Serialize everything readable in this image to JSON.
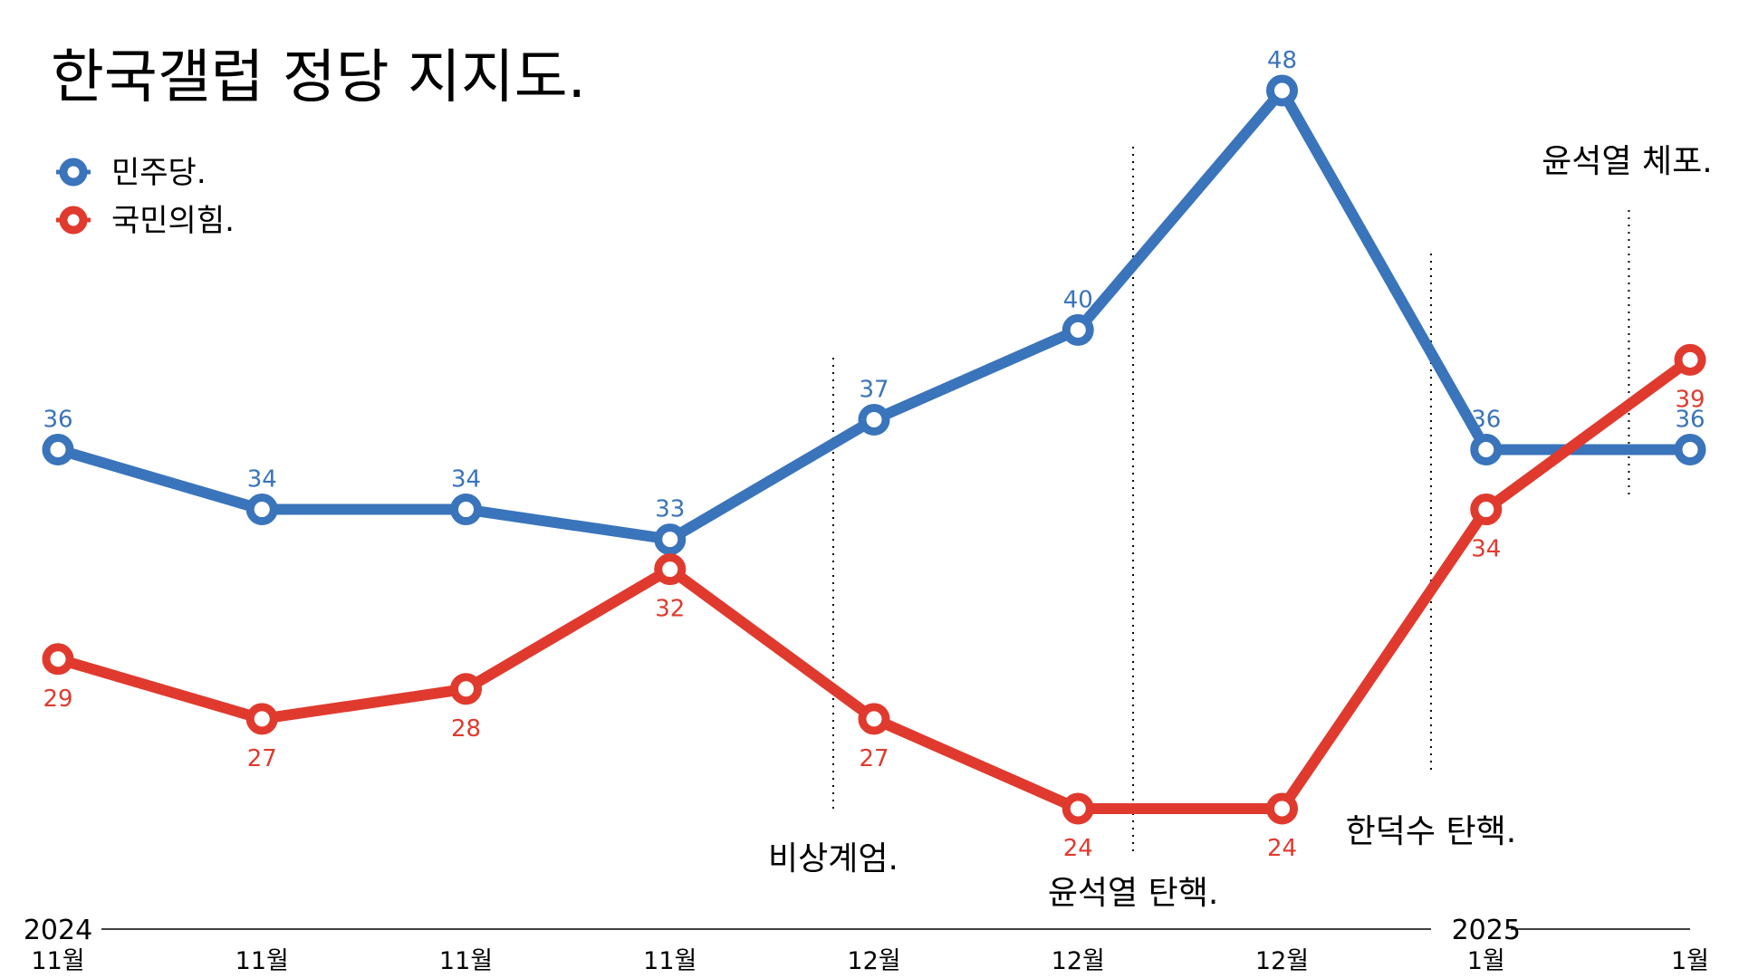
{
  "title": "한국갤럽 정당 지지도.",
  "colors": {
    "blue": "#3a74bb",
    "red": "#e03a2e"
  },
  "chart_data": {
    "type": "line",
    "title": "한국갤럽 정당 지지도.",
    "categories": [
      "11월",
      "11월",
      "11월",
      "11월",
      "12월",
      "12월",
      "12월",
      "1월",
      "1월"
    ],
    "year_labels": [
      {
        "label": "2024",
        "index": 0
      },
      {
        "label": "2025",
        "index": 7
      }
    ],
    "series": [
      {
        "name": "민주당.",
        "color": "#3a74bb",
        "values": [
          36,
          34,
          34,
          33,
          37,
          40,
          48,
          36,
          36
        ]
      },
      {
        "name": "국민의힘.",
        "color": "#e03a2e",
        "values": [
          29,
          27,
          28,
          32,
          27,
          24,
          24,
          34,
          39
        ]
      }
    ],
    "events": [
      {
        "label": "비상계엄.",
        "after_index": 3.8
      },
      {
        "label": "윤석열 탄핵.",
        "after_index": 5.27
      },
      {
        "label": "한덕수 탄핵.",
        "after_index": 6.73
      },
      {
        "label": "윤석열 체포.",
        "after_index": 7.7
      }
    ],
    "ylim": [
      20,
      50
    ],
    "grid": false,
    "legend": "top-left",
    "xlabel": "",
    "ylabel": ""
  }
}
